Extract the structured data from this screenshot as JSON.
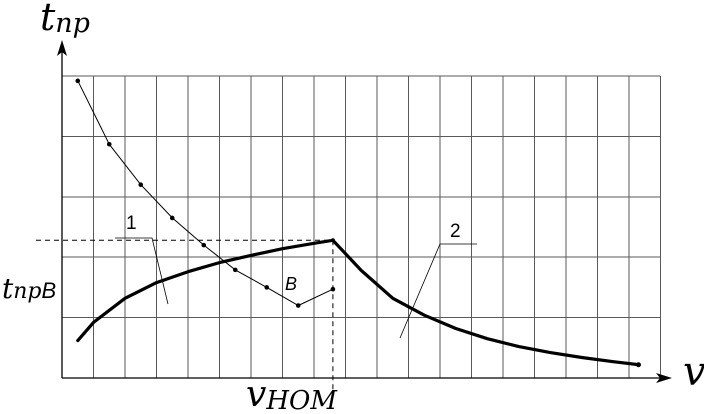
{
  "chart_data": {
    "type": "line",
    "ylabel_main": "t",
    "ylabel_sub": "пр",
    "xlabel": "v",
    "point_label": "B",
    "ytick_main": "t",
    "ytick_sub": "пр",
    "ytick_suffix": "B",
    "xtick_main": "v",
    "xtick_sub": "НОМ",
    "grid": true,
    "series": [
      {
        "name": "1",
        "points": [
          [
            0.5,
            0.62
          ],
          [
            1,
            0.92
          ],
          [
            2,
            1.32
          ],
          [
            3,
            1.58
          ],
          [
            4,
            1.76
          ],
          [
            5,
            1.91
          ],
          [
            6,
            2.03
          ],
          [
            7,
            2.14
          ],
          [
            8,
            2.23
          ],
          [
            8.6,
            2.28
          ]
        ]
      },
      {
        "name": "2",
        "points": [
          [
            0.5,
            4.92
          ],
          [
            1.5,
            3.87
          ],
          [
            2.5,
            3.2
          ],
          [
            3.5,
            2.65
          ],
          [
            4.5,
            2.2
          ],
          [
            5.5,
            1.79
          ],
          [
            6.5,
            1.5
          ],
          [
            7.5,
            1.2
          ],
          [
            8.6,
            1.47
          ],
          [
            8.6,
            1.44
          ]
        ]
      }
    ]
  }
}
